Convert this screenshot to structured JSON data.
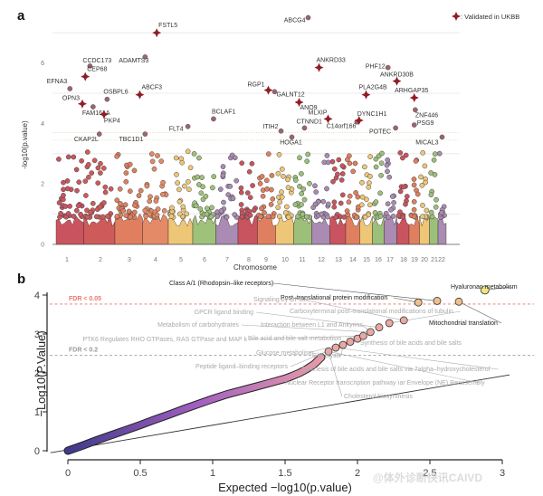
{
  "chart_data": [
    {
      "id": "panel-a",
      "type": "scatter",
      "panel_label": "a",
      "title": "",
      "xlabel": "Chromosome",
      "ylabel": "-log10(p.value)",
      "ylim": [
        0,
        7
      ],
      "yticks": [
        0,
        2,
        4,
        6
      ],
      "grid": true,
      "gridlines_y": [
        1,
        3,
        5,
        7
      ],
      "threshold_lines_y": [
        3.45,
        3.7
      ],
      "legend": {
        "position": "top-right",
        "symbol": "cross",
        "label": ": Validated in UKBB"
      },
      "chromosomes": [
        "1",
        "2",
        "3",
        "4",
        "5",
        "6",
        "7",
        "8",
        "9",
        "10",
        "11",
        "12",
        "13",
        "14",
        "15",
        "16",
        "17",
        "18",
        "19",
        "20",
        "21",
        "22"
      ],
      "chromosome_colors": [
        "#c9545f",
        "#cf5a5a",
        "#e07f5f",
        "#e58a66",
        "#eec677",
        "#9fc27a",
        "#a98bb3",
        "#c7545e",
        "#e07f5f",
        "#edc678",
        "#9cc07a",
        "#a98bb3",
        "#c9545f",
        "#e07f5f",
        "#edc678",
        "#9cc07a",
        "#a98bb3",
        "#c9545f",
        "#e07f5f",
        "#edc678",
        "#9cc07a",
        "#a98bb3"
      ],
      "labeled_points": [
        {
          "gene": "FSTL5",
          "chr": "4",
          "pos": 0.55,
          "y": 7.0,
          "validated": true
        },
        {
          "gene": "ABCG4",
          "chr": "11",
          "pos": 0.8,
          "y": 7.5,
          "validated": false
        },
        {
          "gene": "ADAMTS3",
          "chr": "4",
          "pos": 0.1,
          "y": 6.2,
          "validated": false
        },
        {
          "gene": "CCDC173",
          "chr": "2",
          "pos": 0.2,
          "y": 5.9,
          "validated": false
        },
        {
          "gene": "CEP68",
          "chr": "2",
          "pos": 0.05,
          "y": 5.55,
          "validated": true
        },
        {
          "gene": "EFNA3",
          "chr": "1",
          "pos": 0.5,
          "y": 5.15,
          "validated": false
        },
        {
          "gene": "OSBPL6",
          "chr": "2",
          "pos": 0.75,
          "y": 4.8,
          "validated": false
        },
        {
          "gene": "ABCF3",
          "chr": "3",
          "pos": 0.9,
          "y": 4.95,
          "validated": true
        },
        {
          "gene": "OPN3",
          "chr": "1",
          "pos": 0.95,
          "y": 4.65,
          "validated": true
        },
        {
          "gene": "FAM161A",
          "chr": "2",
          "pos": 0.3,
          "y": 4.55,
          "validated": false
        },
        {
          "gene": "PKP4",
          "chr": "2",
          "pos": 0.65,
          "y": 4.3,
          "validated": true
        },
        {
          "gene": "CKAP2L",
          "chr": "2",
          "pos": 0.5,
          "y": 3.65,
          "validated": false
        },
        {
          "gene": "TBC1D1",
          "chr": "4",
          "pos": 0.1,
          "y": 3.65,
          "validated": false
        },
        {
          "gene": "FLT4",
          "chr": "5",
          "pos": 0.8,
          "y": 3.9,
          "validated": false
        },
        {
          "gene": "BCLAF1",
          "chr": "6",
          "pos": 0.9,
          "y": 4.15,
          "validated": false
        },
        {
          "gene": "RGP1",
          "chr": "9",
          "pos": 0.6,
          "y": 5.1,
          "validated": true
        },
        {
          "gene": "GALNT12",
          "chr": "9",
          "pos": 0.95,
          "y": 5.05,
          "validated": false
        },
        {
          "gene": "ANO9",
          "chr": "11",
          "pos": 0.3,
          "y": 4.7,
          "validated": true
        },
        {
          "gene": "ITIH2",
          "chr": "10",
          "pos": 0.3,
          "y": 3.75,
          "validated": false
        },
        {
          "gene": "HOGA1",
          "chr": "10",
          "pos": 0.9,
          "y": 3.55,
          "validated": false
        },
        {
          "gene": "CTNND1",
          "chr": "11",
          "pos": 0.6,
          "y": 3.85,
          "validated": false
        },
        {
          "gene": "MLXIP",
          "chr": "12",
          "pos": 0.9,
          "y": 4.15,
          "validated": true
        },
        {
          "gene": "ANKRD33",
          "chr": "12",
          "pos": 0.4,
          "y": 5.85,
          "validated": true
        },
        {
          "gene": "C14orf166",
          "chr": "14",
          "pos": 0.8,
          "y": 4.05,
          "validated": false
        },
        {
          "gene": "DYNC1H1",
          "chr": "14",
          "pos": 0.95,
          "y": 4.1,
          "validated": true
        },
        {
          "gene": "PLA2G4B",
          "chr": "15",
          "pos": 0.5,
          "y": 4.95,
          "validated": true
        },
        {
          "gene": "PHF12",
          "chr": "17",
          "pos": 0.3,
          "y": 5.85,
          "validated": false
        },
        {
          "gene": "ANKRD30B",
          "chr": "18",
          "pos": 0.0,
          "y": 5.4,
          "validated": true
        },
        {
          "gene": "ARHGAP35",
          "chr": "19",
          "pos": 0.5,
          "y": 4.85,
          "validated": true
        },
        {
          "gene": "ZNF446",
          "chr": "19",
          "pos": 0.6,
          "y": 4.45,
          "validated": false
        },
        {
          "gene": "PSG9",
          "chr": "19",
          "pos": 0.5,
          "y": 3.95,
          "validated": false
        },
        {
          "gene": "POTEC",
          "chr": "17",
          "pos": 0.9,
          "y": 3.85,
          "validated": false
        },
        {
          "gene": "MICAL3",
          "chr": "22",
          "pos": 0.5,
          "y": 3.55,
          "validated": false
        }
      ]
    },
    {
      "id": "panel-b",
      "type": "scatter",
      "panel_label": "b",
      "title": "",
      "xlabel": "Expected −log10(p.value)",
      "ylabel": "−Log10(P.Value)",
      "xlim": [
        0,
        3
      ],
      "ylim": [
        0,
        4
      ],
      "xticks": [
        "0",
        "0.5",
        "1",
        "1.5",
        "2",
        "2.5",
        "3"
      ],
      "yticks": [
        "0",
        "1",
        "2",
        "3",
        "4"
      ],
      "reference_line": "y = x",
      "fdr_lines": [
        {
          "label": "FDR < 0.05",
          "y": 3.77,
          "color": "#e8786a"
        },
        {
          "label": "FDR < 0.2",
          "y": 2.45,
          "color": "#999999"
        }
      ],
      "qq_curve": {
        "x": [
          0,
          0.1,
          0.2,
          0.3,
          0.4,
          0.5,
          0.6,
          0.7,
          0.8,
          0.9,
          1.0,
          1.1,
          1.2,
          1.3,
          1.4,
          1.5,
          1.55,
          1.6,
          1.65,
          1.7,
          1.75
        ],
        "y": [
          0,
          0.13,
          0.27,
          0.4,
          0.53,
          0.66,
          0.8,
          0.93,
          1.07,
          1.2,
          1.33,
          1.45,
          1.55,
          1.65,
          1.75,
          1.85,
          1.92,
          2.0,
          2.1,
          2.22,
          2.4
        ],
        "color_start": "#3f3a8a",
        "color_mid": "#a05ec0",
        "color_end": "#e89aa8"
      },
      "top_points": [
        {
          "x": 1.8,
          "y": 2.55
        },
        {
          "x": 1.85,
          "y": 2.65
        },
        {
          "x": 1.9,
          "y": 2.72
        },
        {
          "x": 1.95,
          "y": 2.8
        },
        {
          "x": 2.0,
          "y": 2.88
        },
        {
          "x": 2.04,
          "y": 2.95
        },
        {
          "x": 2.09,
          "y": 3.05
        },
        {
          "x": 2.15,
          "y": 3.17
        },
        {
          "x": 2.22,
          "y": 3.28
        },
        {
          "x": 2.32,
          "y": 3.35
        },
        {
          "x": 2.42,
          "y": 3.81
        },
        {
          "x": 2.55,
          "y": 3.85
        },
        {
          "x": 2.7,
          "y": 3.83
        },
        {
          "x": 2.88,
          "y": 4.13
        }
      ],
      "pathway_labels": [
        {
          "text": "Hyaluronan metabolism",
          "style": "dark",
          "point": 13
        },
        {
          "text": "Class A/1 (Rhodopsin–like receptors)",
          "style": "dark",
          "point": 11
        },
        {
          "text": "Post–translational protein modification",
          "style": "dark",
          "point": 10
        },
        {
          "text": "Mitochondrial translation",
          "style": "dark",
          "point": 12
        },
        {
          "text": "Signaling by GPCR",
          "style": "light",
          "point": 9
        },
        {
          "text": "Carboxyterminal post–translational modifications of tubulin",
          "style": "light",
          "point": 8
        },
        {
          "text": "GPCR ligand binding",
          "style": "light",
          "point": 7
        },
        {
          "text": "Interaction between L1 and Ankyrins",
          "style": "light",
          "point": 6
        },
        {
          "text": "Metabolism of carbohydrates",
          "style": "light",
          "point": 6
        },
        {
          "text": "PTK6 Regulates RHO GTPases, RAS GTPase and MAP k",
          "style": "light",
          "point": 5
        },
        {
          "text": "Bile acid and bile salt metabolism",
          "style": "light",
          "point": 5
        },
        {
          "text": "Synthesis of bile acids and bile salts",
          "style": "light",
          "point": 4
        },
        {
          "text": "Glucose metabolism",
          "style": "light",
          "point": 3
        },
        {
          "text": "Glycolysis",
          "style": "light",
          "point": 2
        },
        {
          "text": "Peptide ligand–binding receptors",
          "style": "light",
          "point": 1
        },
        {
          "text": "Synthesis of bile acids and bile salts via 7alpha–hydroxycholesterol",
          "style": "light",
          "point": 1
        },
        {
          "text": "Nuclear Receptor transcription pathway ıar Envelope (NE) Reassembly",
          "style": "light",
          "point": 0
        },
        {
          "text": "Cholesterol biosynthesis",
          "style": "light",
          "point": 0
        }
      ]
    }
  ],
  "watermark": "@体外诊断快讯CAIVD"
}
